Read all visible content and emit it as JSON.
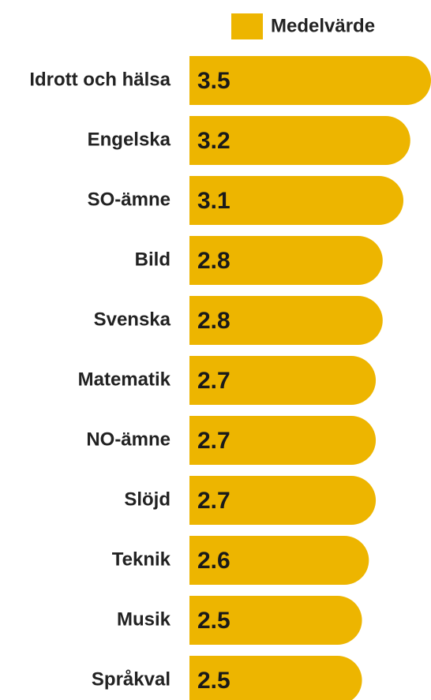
{
  "chart_data": {
    "type": "bar",
    "orientation": "horizontal",
    "legend": "Medelvärde",
    "color": "#edb500",
    "categories": [
      "Idrott och hälsa",
      "Engelska",
      "SO-ämne",
      "Bild",
      "Svenska",
      "Matematik",
      "NO-ämne",
      "Slöjd",
      "Teknik",
      "Musik",
      "Språkval"
    ],
    "values": [
      3.5,
      3.2,
      3.1,
      2.8,
      2.8,
      2.7,
      2.7,
      2.7,
      2.6,
      2.5,
      2.5
    ]
  }
}
